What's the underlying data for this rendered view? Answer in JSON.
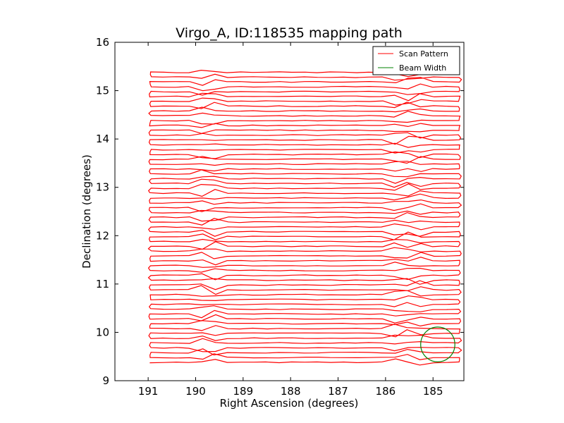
{
  "chart_data": {
    "type": "line",
    "title": "Virgo_A, ID:118535 mapping path",
    "xlabel": "Right Ascension (degrees)",
    "ylabel": "Declination (degrees)",
    "xlim": [
      191.7,
      184.35
    ],
    "ylim": [
      9,
      16
    ],
    "xticks": [
      191,
      190,
      189,
      188,
      187,
      186,
      185
    ],
    "yticks": [
      9,
      10,
      11,
      12,
      13,
      14,
      15,
      16
    ],
    "grid": false,
    "legend_position": "top-right",
    "series": [
      {
        "name": "Scan Pattern",
        "color": "#ff0000",
        "scan": {
          "ra_left": 190.95,
          "ra_right": 184.45,
          "dec_start": 9.38,
          "dec_end": 15.38,
          "row_step": 0.1,
          "turnaround_left_ra": 189.75,
          "turnaround_right_ra": 185.6
        }
      },
      {
        "name": "Beam Width",
        "color": "#008000",
        "circle": {
          "ra": 184.9,
          "dec": 9.75,
          "radius_deg": 0.36
        }
      }
    ]
  }
}
